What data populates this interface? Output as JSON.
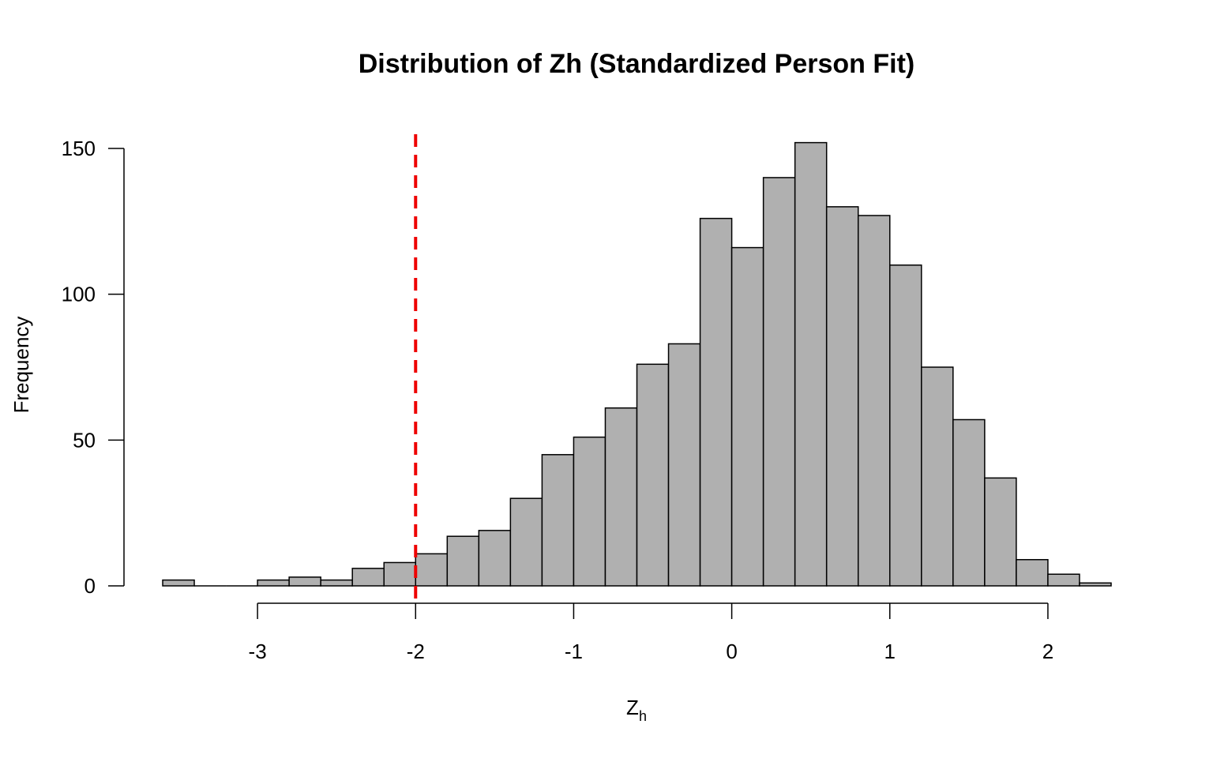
{
  "chart_data": {
    "type": "bar",
    "title": "Distribution of Zh (Standardized Person Fit)",
    "xlabel": "Z",
    "xlabel_subscript": "h",
    "ylabel": "Frequency",
    "xlim": [
      -3.6,
      2.4
    ],
    "ylim": [
      0,
      155
    ],
    "bin_width": 0.2,
    "x_ticks": [
      -3,
      -2,
      -1,
      0,
      1,
      2
    ],
    "x_tick_labels": [
      "-3",
      "-2",
      "-1",
      "0",
      "1",
      "2"
    ],
    "y_ticks": [
      0,
      50,
      100,
      150
    ],
    "y_tick_labels": [
      "0",
      "50",
      "100",
      "150"
    ],
    "bins": [
      {
        "from": -3.6,
        "to": -3.4,
        "count": 2
      },
      {
        "from": -3.4,
        "to": -3.2,
        "count": 0
      },
      {
        "from": -3.2,
        "to": -3.0,
        "count": 0
      },
      {
        "from": -3.0,
        "to": -2.8,
        "count": 2
      },
      {
        "from": -2.8,
        "to": -2.6,
        "count": 3
      },
      {
        "from": -2.6,
        "to": -2.4,
        "count": 2
      },
      {
        "from": -2.4,
        "to": -2.2,
        "count": 6
      },
      {
        "from": -2.2,
        "to": -2.0,
        "count": 8
      },
      {
        "from": -2.0,
        "to": -1.8,
        "count": 11
      },
      {
        "from": -1.8,
        "to": -1.6,
        "count": 17
      },
      {
        "from": -1.6,
        "to": -1.4,
        "count": 19
      },
      {
        "from": -1.4,
        "to": -1.2,
        "count": 30
      },
      {
        "from": -1.2,
        "to": -1.0,
        "count": 45
      },
      {
        "from": -1.0,
        "to": -0.8,
        "count": 51
      },
      {
        "from": -0.8,
        "to": -0.6,
        "count": 61
      },
      {
        "from": -0.6,
        "to": -0.4,
        "count": 76
      },
      {
        "from": -0.4,
        "to": -0.2,
        "count": 83
      },
      {
        "from": -0.2,
        "to": 0.0,
        "count": 126
      },
      {
        "from": 0.0,
        "to": 0.2,
        "count": 116
      },
      {
        "from": 0.2,
        "to": 0.4,
        "count": 140
      },
      {
        "from": 0.4,
        "to": 0.6,
        "count": 152
      },
      {
        "from": 0.6,
        "to": 0.8,
        "count": 130
      },
      {
        "from": 0.8,
        "to": 1.0,
        "count": 127
      },
      {
        "from": 1.0,
        "to": 1.2,
        "count": 110
      },
      {
        "from": 1.2,
        "to": 1.4,
        "count": 75
      },
      {
        "from": 1.4,
        "to": 1.6,
        "count": 57
      },
      {
        "from": 1.6,
        "to": 1.8,
        "count": 37
      },
      {
        "from": 1.8,
        "to": 2.0,
        "count": 9
      },
      {
        "from": 2.0,
        "to": 2.2,
        "count": 4
      },
      {
        "from": 2.2,
        "to": 2.4,
        "count": 1
      }
    ],
    "reference_line": {
      "x": -2,
      "style": "dashed",
      "color": "#ee0000"
    },
    "bar_fill": "#b0b0b0",
    "bar_stroke": "#000000",
    "grid": false,
    "legend": "none"
  }
}
